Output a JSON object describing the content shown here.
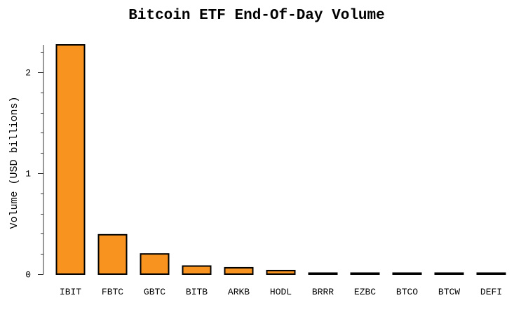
{
  "chart_data": {
    "type": "bar",
    "title": "Bitcoin ETF End-Of-Day Volume",
    "xlabel": "",
    "ylabel": "Volume (USD billions)",
    "categories": [
      "IBIT",
      "FBTC",
      "GBTC",
      "BITB",
      "ARKB",
      "HODL",
      "BRRR",
      "EZBC",
      "BTCO",
      "BTCW",
      "DEFI"
    ],
    "values": [
      2.27,
      0.39,
      0.2,
      0.08,
      0.063,
      0.035,
      0.01,
      0.009,
      0.008,
      0.006,
      0.004
    ],
    "ylim": [
      0,
      2.27
    ],
    "yticks": [
      0,
      1,
      2
    ],
    "ytick_labels": [
      "0",
      "1",
      "2"
    ],
    "minor_tick_step": 0.2,
    "grid": false,
    "colors": {
      "bar_fill": "#F7931E",
      "bar_stroke": "#000000",
      "axis": "#333333"
    }
  }
}
